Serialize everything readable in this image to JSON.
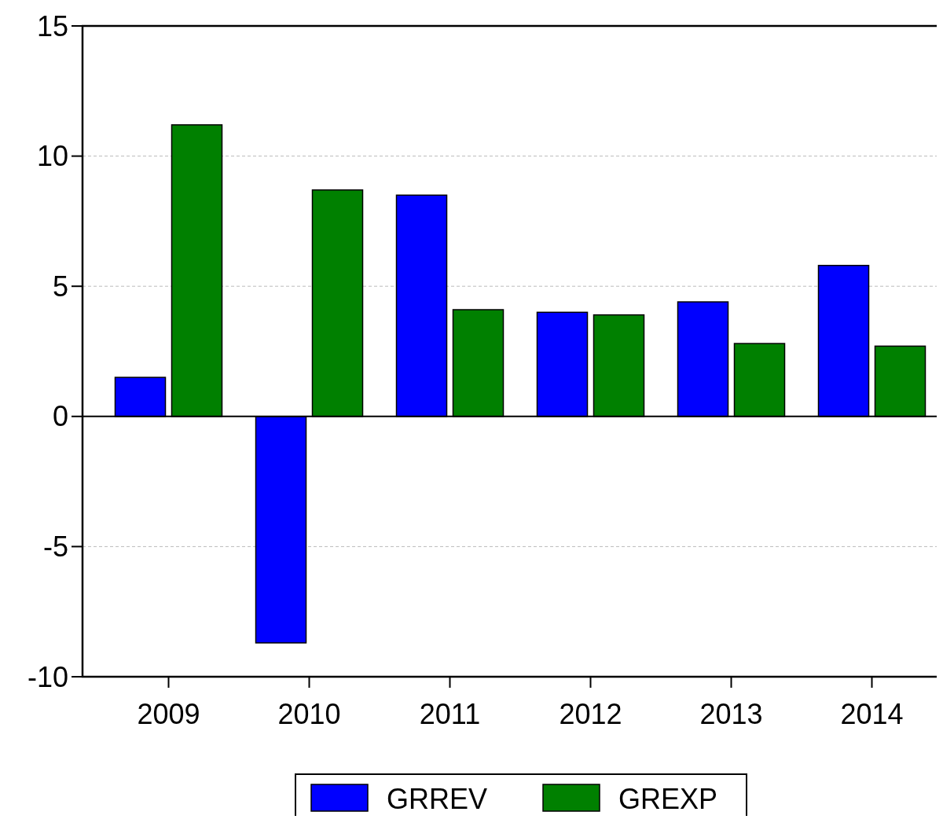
{
  "chart_data": {
    "type": "bar",
    "categories": [
      "2009",
      "2010",
      "2011",
      "2012",
      "2013",
      "2014"
    ],
    "series": [
      {
        "name": "GRREV",
        "color": "#0000ff",
        "values": [
          1.5,
          -8.7,
          8.5,
          4.0,
          4.4,
          5.8
        ]
      },
      {
        "name": "GREXP",
        "color": "#008000",
        "values": [
          11.2,
          8.7,
          4.1,
          3.9,
          2.8,
          2.7
        ]
      }
    ],
    "ylim": [
      -10,
      15
    ],
    "yticks": [
      -10,
      -5,
      0,
      5,
      10,
      15
    ],
    "grid": "y",
    "legend": "bottom"
  }
}
